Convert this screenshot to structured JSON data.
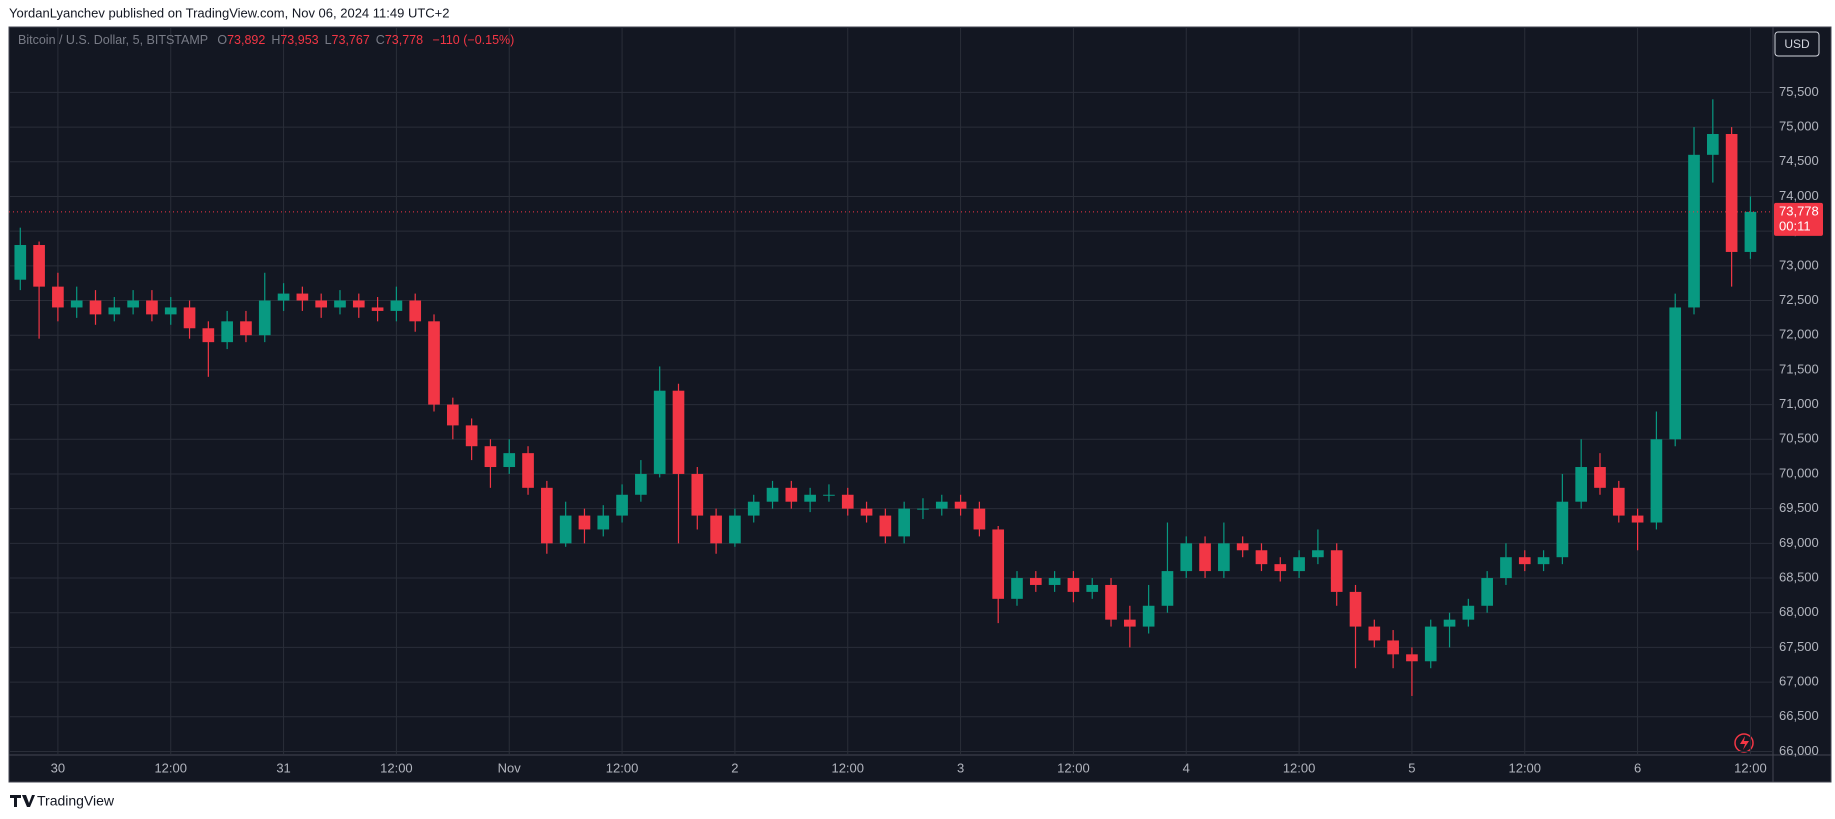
{
  "header": {
    "published": "YordanLyanchev published on TradingView.com, Nov 06, 2024 11:49 UTC+2"
  },
  "footer": {
    "brand": "TradingView"
  },
  "chart_data": {
    "type": "candlestick",
    "legend": {
      "symbol": "Bitcoin / U.S. Dollar, 5, BITSTAMP",
      "fields": [
        {
          "key": "O",
          "value": 73892,
          "label": "73,892"
        },
        {
          "key": "H",
          "value": 73953,
          "label": "73,953"
        },
        {
          "key": "L",
          "value": 73767,
          "label": "73,767"
        },
        {
          "key": "C",
          "value": 73778,
          "label": "73,778"
        }
      ],
      "change": {
        "value": -110,
        "label": "−110"
      },
      "change_percent": {
        "value": -0.15,
        "label": "(−0.15%)"
      }
    },
    "currency": "USD",
    "last_price": {
      "value": 73778,
      "label": "73,778"
    },
    "countdown": "00:11",
    "up_color": "#089981",
    "down_color": "#f23645",
    "last_price_color": "#f23645",
    "grid": true,
    "xlim": [
      -5.2,
      182.4
    ],
    "xticks": [
      {
        "value": 0,
        "label": "30"
      },
      {
        "value": 12,
        "label": "12:00"
      },
      {
        "value": 24,
        "label": "31"
      },
      {
        "value": 36,
        "label": "12:00"
      },
      {
        "value": 48,
        "label": "Nov"
      },
      {
        "value": 60,
        "label": "12:00"
      },
      {
        "value": 72,
        "label": "2"
      },
      {
        "value": 84,
        "label": "12:00"
      },
      {
        "value": 96,
        "label": "3"
      },
      {
        "value": 108,
        "label": "12:00"
      },
      {
        "value": 120,
        "label": "4"
      },
      {
        "value": 132,
        "label": "12:00"
      },
      {
        "value": 144,
        "label": "5"
      },
      {
        "value": 156,
        "label": "12:00"
      },
      {
        "value": 168,
        "label": "6"
      },
      {
        "value": 180,
        "label": "12:00"
      }
    ],
    "ylim": [
      65949,
      76428
    ],
    "yticks": [
      {
        "value": 66000,
        "label": "66,000"
      },
      {
        "value": 66500,
        "label": "66,500"
      },
      {
        "value": 67000,
        "label": "67,000"
      },
      {
        "value": 67500,
        "label": "67,500"
      },
      {
        "value": 68000,
        "label": "68,000"
      },
      {
        "value": 68500,
        "label": "68,500"
      },
      {
        "value": 69000,
        "label": "69,000"
      },
      {
        "value": 69500,
        "label": "69,500"
      },
      {
        "value": 70000,
        "label": "70,000"
      },
      {
        "value": 70500,
        "label": "70,500"
      },
      {
        "value": 71000,
        "label": "71,000"
      },
      {
        "value": 71500,
        "label": "71,500"
      },
      {
        "value": 72000,
        "label": "72,000"
      },
      {
        "value": 72500,
        "label": "72,500"
      },
      {
        "value": 73000,
        "label": "73,000"
      },
      {
        "value": 73500,
        "label": "73,500"
      },
      {
        "value": 74000,
        "label": "74,000"
      },
      {
        "value": 74500,
        "label": "74,500"
      },
      {
        "value": 75000,
        "label": "75,000"
      },
      {
        "value": 75500,
        "label": "75,500"
      }
    ],
    "x": [
      -4,
      -2,
      0,
      2,
      4,
      6,
      8,
      10,
      12,
      14,
      16,
      18,
      20,
      22,
      24,
      26,
      28,
      30,
      32,
      34,
      36,
      38,
      40,
      42,
      44,
      46,
      48,
      50,
      52,
      54,
      56,
      58,
      60,
      62,
      64,
      66,
      68,
      70,
      72,
      74,
      76,
      78,
      80,
      82,
      84,
      86,
      88,
      90,
      92,
      94,
      96,
      98,
      100,
      102,
      104,
      106,
      108,
      110,
      112,
      114,
      116,
      118,
      120,
      122,
      124,
      126,
      128,
      130,
      132,
      134,
      136,
      138,
      140,
      142,
      144,
      146,
      148,
      150,
      152,
      154,
      156,
      158,
      160,
      162,
      164,
      166,
      168,
      170,
      172,
      174,
      176,
      178,
      180
    ],
    "open": [
      72800,
      73300,
      72700,
      72400,
      72500,
      72300,
      72400,
      72500,
      72300,
      72400,
      72100,
      71900,
      72200,
      72000,
      72500,
      72600,
      72500,
      72400,
      72500,
      72400,
      72350,
      72500,
      72200,
      71000,
      70700,
      70400,
      70100,
      70300,
      69800,
      69000,
      69400,
      69200,
      69400,
      69700,
      70000,
      71200,
      70000,
      69400,
      69000,
      69400,
      69600,
      69800,
      69600,
      69700,
      69700,
      69500,
      69400,
      69100,
      69500,
      69500,
      69600,
      69500,
      69200,
      68200,
      68500,
      68400,
      68500,
      68300,
      68400,
      67900,
      67800,
      68100,
      68600,
      69000,
      68600,
      69000,
      68900,
      68700,
      68600,
      68800,
      68900,
      68300,
      67800,
      67600,
      67400,
      67300,
      67800,
      67900,
      68100,
      68500,
      68800,
      68700,
      68800,
      69600,
      70100,
      69800,
      69400,
      69300,
      70500,
      72400,
      74600,
      74900,
      73200
    ],
    "high": [
      73550,
      73350,
      72900,
      72700,
      72650,
      72550,
      72650,
      72650,
      72550,
      72500,
      72200,
      72350,
      72350,
      72900,
      72750,
      72700,
      72600,
      72650,
      72600,
      72550,
      72700,
      72600,
      72300,
      71100,
      70800,
      70500,
      70500,
      70400,
      69900,
      69600,
      69500,
      69550,
      69850,
      70200,
      71550,
      71300,
      70100,
      69500,
      69500,
      69700,
      69900,
      69900,
      69800,
      69850,
      69800,
      69600,
      69500,
      69600,
      69650,
      69700,
      69700,
      69600,
      69250,
      68600,
      68600,
      68600,
      68600,
      68500,
      68500,
      68100,
      68400,
      69300,
      69100,
      69100,
      69300,
      69100,
      69000,
      68800,
      68900,
      69200,
      69000,
      68400,
      67900,
      67750,
      67500,
      67900,
      68000,
      68200,
      68600,
      69000,
      68900,
      68900,
      70000,
      70500,
      70300,
      69900,
      69500,
      70900,
      72600,
      75000,
      75400,
      75000,
      74000
    ],
    "low": [
      72650,
      71950,
      72200,
      72250,
      72150,
      72200,
      72300,
      72200,
      72150,
      71950,
      71400,
      71800,
      71900,
      71900,
      72350,
      72350,
      72250,
      72300,
      72250,
      72200,
      72200,
      72050,
      70900,
      70500,
      70200,
      69800,
      70000,
      69700,
      68850,
      68950,
      69000,
      69100,
      69300,
      69600,
      69950,
      69000,
      69200,
      68850,
      68950,
      69300,
      69500,
      69500,
      69450,
      69600,
      69400,
      69300,
      69000,
      69000,
      69350,
      69400,
      69400,
      69100,
      67850,
      68100,
      68300,
      68300,
      68150,
      68200,
      67800,
      67500,
      67700,
      68000,
      68500,
      68500,
      68500,
      68800,
      68600,
      68450,
      68500,
      68700,
      68100,
      67200,
      67500,
      67200,
      66800,
      67200,
      67500,
      67800,
      68000,
      68400,
      68600,
      68600,
      68700,
      69500,
      69700,
      69300,
      68900,
      69200,
      70400,
      72300,
      74200,
      72700,
      73100
    ],
    "close": [
      73300,
      72700,
      72400,
      72500,
      72300,
      72400,
      72500,
      72300,
      72400,
      72100,
      71900,
      72200,
      72000,
      72500,
      72600,
      72500,
      72400,
      72500,
      72400,
      72350,
      72500,
      72200,
      71000,
      70700,
      70400,
      70100,
      70300,
      69800,
      69000,
      69400,
      69200,
      69400,
      69700,
      70000,
      71200,
      70000,
      69400,
      69000,
      69400,
      69600,
      69800,
      69600,
      69700,
      69700,
      69500,
      69400,
      69100,
      69500,
      69500,
      69600,
      69500,
      69200,
      68200,
      68500,
      68400,
      68500,
      68300,
      68400,
      67900,
      67800,
      68100,
      68600,
      69000,
      68600,
      69000,
      68900,
      68700,
      68600,
      68800,
      68900,
      68300,
      67800,
      67600,
      67400,
      67300,
      67800,
      67900,
      68100,
      68500,
      68800,
      68700,
      68800,
      69600,
      70100,
      69800,
      69400,
      69300,
      70500,
      72400,
      74600,
      74900,
      73200,
      73778
    ]
  }
}
